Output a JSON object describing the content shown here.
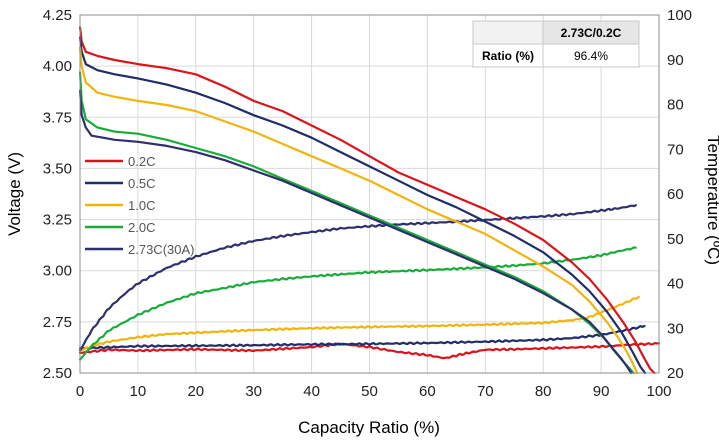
{
  "chart_data": {
    "type": "line",
    "title": "",
    "xlabel": "Capacity Ratio (%)",
    "ylabel": "Voltage (V)",
    "y2label": "Temperature (ºC)",
    "xlim": [
      0,
      100
    ],
    "ylim": [
      2.5,
      4.25
    ],
    "y2lim": [
      20,
      100
    ],
    "xticks": [
      "0",
      "10",
      "20",
      "30",
      "40",
      "50",
      "60",
      "70",
      "80",
      "90",
      "100"
    ],
    "yticks": [
      "2.50",
      "2.75",
      "3.00",
      "3.25",
      "3.50",
      "3.75",
      "4.00",
      "4.25"
    ],
    "y2ticks": [
      "20",
      "30",
      "40",
      "50",
      "60",
      "70",
      "80",
      "90",
      "100"
    ],
    "grid": true,
    "legend_position": "left",
    "legend": [
      {
        "label": "0.2C",
        "color": "#d9141b"
      },
      {
        "label": "0.5C",
        "color": "#1f2d6b"
      },
      {
        "label": "1.0C",
        "color": "#f2b40c"
      },
      {
        "label": "2.0C",
        "color": "#1aab3a"
      },
      {
        "label": "2.73C(30A)",
        "color": "#2e2f6e"
      }
    ],
    "ratio_table": {
      "column_header": "2.73C/0.2C",
      "row_label": "Ratio (%)",
      "value": "96.4%"
    },
    "voltage_series": [
      {
        "name": "0.2C",
        "color": "#d9141b",
        "axis": "left",
        "x": [
          0,
          0.3,
          1,
          3,
          6,
          10,
          15,
          20,
          25,
          30,
          35,
          40,
          45,
          50,
          55,
          60,
          65,
          70,
          75,
          80,
          85,
          88,
          91,
          94,
          96,
          97.5,
          98.5,
          99.2
        ],
        "y": [
          4.19,
          4.12,
          4.07,
          4.05,
          4.03,
          4.01,
          3.99,
          3.96,
          3.9,
          3.83,
          3.78,
          3.71,
          3.64,
          3.56,
          3.48,
          3.42,
          3.36,
          3.3,
          3.23,
          3.15,
          3.04,
          2.96,
          2.86,
          2.74,
          2.65,
          2.57,
          2.52,
          2.5
        ]
      },
      {
        "name": "0.5C",
        "color": "#1f2d6b",
        "axis": "left",
        "x": [
          0,
          0.3,
          1,
          3,
          6,
          10,
          15,
          20,
          25,
          30,
          35,
          40,
          45,
          50,
          55,
          60,
          65,
          70,
          75,
          80,
          85,
          88,
          91,
          93.5,
          95.5,
          96.8,
          97.6
        ],
        "y": [
          4.14,
          4.07,
          4.01,
          3.98,
          3.96,
          3.94,
          3.91,
          3.87,
          3.82,
          3.76,
          3.71,
          3.65,
          3.58,
          3.51,
          3.44,
          3.37,
          3.31,
          3.24,
          3.17,
          3.09,
          2.98,
          2.9,
          2.8,
          2.7,
          2.6,
          2.53,
          2.5
        ]
      },
      {
        "name": "1.0C",
        "color": "#f2b40c",
        "axis": "left",
        "x": [
          0,
          0.3,
          1,
          3,
          6,
          10,
          15,
          20,
          25,
          30,
          35,
          40,
          45,
          50,
          55,
          60,
          65,
          70,
          75,
          80,
          85,
          88,
          91,
          93,
          94.5,
          95.6,
          96.2
        ],
        "y": [
          4.09,
          4.0,
          3.92,
          3.87,
          3.85,
          3.83,
          3.81,
          3.78,
          3.73,
          3.68,
          3.62,
          3.56,
          3.5,
          3.44,
          3.37,
          3.3,
          3.24,
          3.18,
          3.1,
          3.02,
          2.93,
          2.85,
          2.75,
          2.67,
          2.6,
          2.54,
          2.5
        ]
      },
      {
        "name": "2.0C",
        "color": "#1aab3a",
        "axis": "left",
        "x": [
          0,
          0.3,
          1,
          3,
          6,
          10,
          15,
          20,
          25,
          30,
          35,
          40,
          45,
          50,
          55,
          60,
          65,
          70,
          75,
          80,
          85,
          88,
          90.5,
          92.5,
          94,
          95,
          95.6
        ],
        "y": [
          3.97,
          3.83,
          3.74,
          3.7,
          3.68,
          3.67,
          3.64,
          3.6,
          3.56,
          3.51,
          3.45,
          3.39,
          3.33,
          3.27,
          3.21,
          3.15,
          3.09,
          3.03,
          2.97,
          2.9,
          2.81,
          2.74,
          2.67,
          2.6,
          2.55,
          2.52,
          2.5
        ]
      },
      {
        "name": "2.73C(30A)",
        "color": "#2e2f6e",
        "axis": "left",
        "x": [
          0,
          0.3,
          1,
          2,
          4,
          6,
          10,
          15,
          20,
          25,
          30,
          35,
          40,
          45,
          50,
          55,
          60,
          65,
          70,
          75,
          80,
          85,
          88,
          90,
          92,
          93.5,
          94.5,
          95.2
        ],
        "y": [
          3.88,
          3.76,
          3.7,
          3.66,
          3.65,
          3.64,
          3.63,
          3.61,
          3.58,
          3.54,
          3.49,
          3.44,
          3.38,
          3.32,
          3.26,
          3.2,
          3.14,
          3.08,
          3.02,
          2.96,
          2.89,
          2.81,
          2.75,
          2.69,
          2.62,
          2.57,
          2.53,
          2.5
        ]
      }
    ],
    "temperature_series": [
      {
        "name": "0.2C",
        "color": "#d9141b",
        "axis": "right",
        "x": [
          0,
          5,
          10,
          20,
          30,
          40,
          45,
          50,
          55,
          60,
          63,
          66,
          70,
          75,
          80,
          85,
          90,
          95,
          100
        ],
        "y": [
          24.5,
          25.2,
          25.0,
          25.3,
          25.0,
          25.8,
          26.5,
          25.8,
          24.7,
          24.0,
          23.3,
          24.2,
          25.2,
          25.3,
          25.5,
          25.7,
          25.9,
          26.3,
          26.6
        ]
      },
      {
        "name": "0.5C",
        "color": "#1f2d6b",
        "axis": "right",
        "x": [
          0,
          10,
          20,
          30,
          40,
          50,
          60,
          70,
          80,
          85,
          90,
          94,
          97.5
        ],
        "y": [
          25.5,
          26.0,
          26.1,
          26.2,
          26.4,
          26.5,
          26.7,
          27.0,
          27.4,
          27.8,
          28.5,
          29.5,
          30.5
        ]
      },
      {
        "name": "1.0C",
        "color": "#f2b40c",
        "axis": "right",
        "x": [
          0,
          2,
          5,
          10,
          15,
          20,
          30,
          40,
          50,
          60,
          70,
          80,
          85,
          88,
          91,
          94,
          96.5
        ],
        "y": [
          25.0,
          26.0,
          27.0,
          28.0,
          28.7,
          29.0,
          29.6,
          30.0,
          30.3,
          30.5,
          30.8,
          31.2,
          31.8,
          32.5,
          34.0,
          35.6,
          37.0
        ]
      },
      {
        "name": "2.0C",
        "color": "#1aab3a",
        "axis": "right",
        "x": [
          0,
          2,
          5,
          10,
          15,
          20,
          25,
          30,
          35,
          40,
          50,
          60,
          70,
          75,
          80,
          85,
          90,
          93,
          96
        ],
        "y": [
          23.0,
          26.0,
          29.5,
          33.0,
          35.7,
          37.8,
          39.0,
          40.3,
          41.0,
          41.6,
          42.5,
          43.0,
          43.6,
          44.0,
          44.5,
          45.3,
          46.3,
          47.2,
          48.0
        ]
      },
      {
        "name": "2.73C(30A)",
        "color": "#2e2f6e",
        "axis": "right",
        "x": [
          0,
          2,
          5,
          8,
          10,
          15,
          20,
          25,
          30,
          35,
          40,
          45,
          50,
          55,
          60,
          65,
          70,
          75,
          80,
          85,
          90,
          93,
          96
        ],
        "y": [
          25.0,
          29.5,
          34.5,
          38.0,
          40.0,
          43.5,
          46.0,
          48.0,
          49.5,
          50.6,
          51.5,
          52.3,
          52.8,
          53.2,
          53.5,
          53.8,
          54.2,
          54.6,
          55.0,
          55.5,
          56.3,
          56.8,
          57.5
        ]
      }
    ]
  }
}
